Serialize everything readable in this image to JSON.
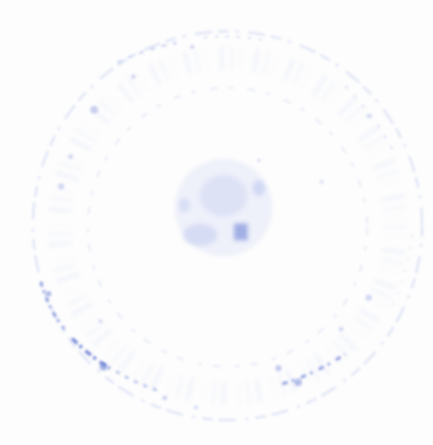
{
  "stamp": {
    "kind": "faded circular ink seal",
    "ink_color": "#5a6fd0",
    "background_color": "#fdfdfd"
  }
}
